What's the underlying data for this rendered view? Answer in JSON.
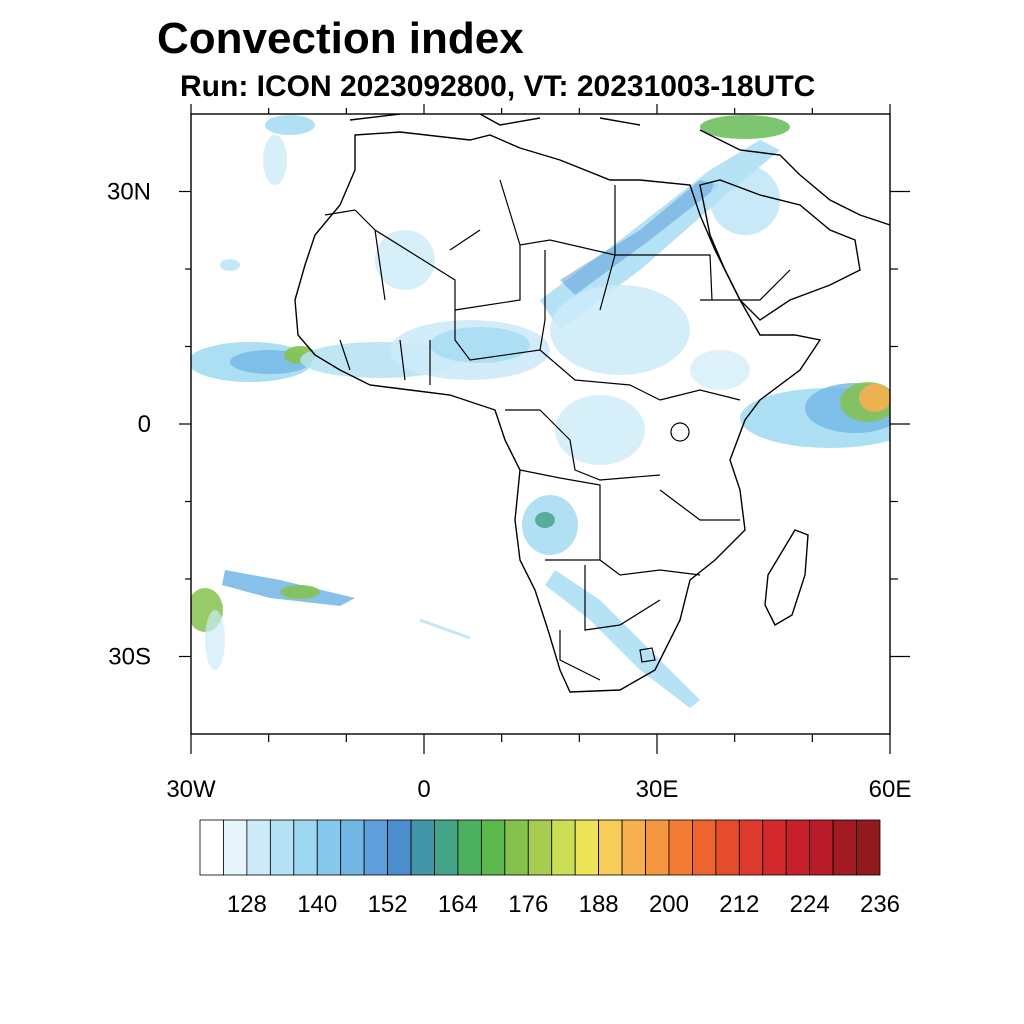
{
  "title": "Convection index",
  "subtitle": "Run: ICON 2023092800,  VT: 20231003-18UTC",
  "map": {
    "lon_range": [
      -30,
      60
    ],
    "lat_range": [
      -40,
      40
    ],
    "lat_ticks": [
      {
        "value": 30,
        "label": "30N"
      },
      {
        "value": 0,
        "label": "0"
      },
      {
        "value": -30,
        "label": "30S"
      }
    ],
    "lon_ticks": [
      {
        "value": -30,
        "label": "30W"
      },
      {
        "value": 0,
        "label": "0"
      },
      {
        "value": 30,
        "label": "30E"
      },
      {
        "value": 60,
        "label": "60E"
      }
    ],
    "minor_lon_ticks": [
      -20,
      -10,
      10,
      20,
      40,
      50
    ],
    "minor_lat_ticks": [
      20,
      10,
      -10,
      -20
    ]
  },
  "colorbar": {
    "colors": [
      "#ffffff",
      "#e6f4fb",
      "#cdebf8",
      "#b5e2f5",
      "#9dd8f2",
      "#87c8ee",
      "#72b6e6",
      "#5e9fdb",
      "#4c8dce",
      "#4396a8",
      "#44a488",
      "#4cb060",
      "#5cb84c",
      "#84c24c",
      "#a8cc50",
      "#cade56",
      "#eee45a",
      "#f8cc58",
      "#f7b050",
      "#f59640",
      "#f27c34",
      "#ee642e",
      "#e44c2c",
      "#de3a2c",
      "#d42a2c",
      "#c8202a",
      "#b81c28",
      "#a41a22",
      "#921a1e"
    ],
    "tick_labels": [
      "128",
      "140",
      "152",
      "164",
      "176",
      "188",
      "200",
      "212",
      "224",
      "236"
    ]
  },
  "legend": {
    "label": ""
  }
}
